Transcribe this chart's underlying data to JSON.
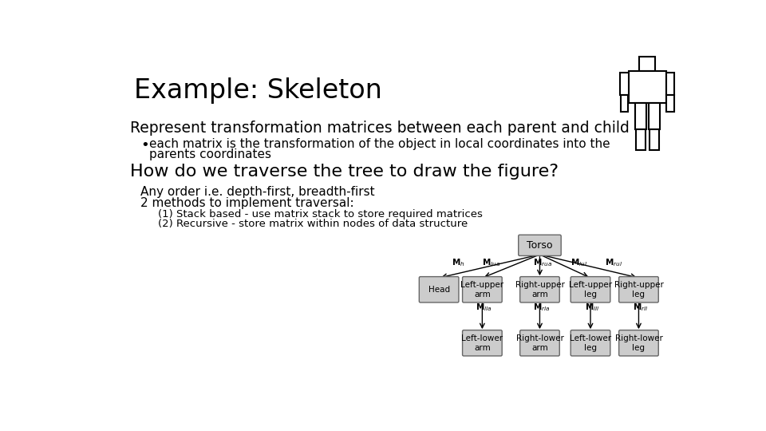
{
  "title": "Example: Skeleton",
  "bg_color": "#ffffff",
  "text_color": "#000000",
  "bullet_line1": "each matrix is the transformation of the object in local coordinates into the",
  "bullet_line2": "parents coordinates",
  "main_text1": "Represent transformation matrices between each parent and child",
  "how_text": "How do we traverse the tree to draw the figure?",
  "any_order": "Any order i.e. depth-first, breadth-first",
  "two_methods": "2 methods to implement traversal:",
  "method1": "(1) Stack based - use matrix stack to store required matrices",
  "method2": "(2) Recursive - store matrix within nodes of data structure",
  "node_bg": "#c8c8c8",
  "node_border": "#666666",
  "torso_label": "Torso",
  "level1_nodes": [
    "Head",
    "Left-upper\narm",
    "Right-upper\narm",
    "Left-upper\nleg",
    "Right-upper\nleg"
  ],
  "level1_math": [
    "$\\mathbf{M}_h$",
    "$\\mathbf{M}_{lua}$",
    "$\\mathbf{M}_{rua}$",
    "$\\mathbf{M}_{lul}$",
    "$\\mathbf{M}_{rul}$"
  ],
  "level2_nodes": [
    "Left-lower\narm",
    "Right-lower\narm",
    "Left-lower\nleg",
    "Right-lower\nleg"
  ],
  "level2_math": [
    "$\\mathbf{M}_{lla}$",
    "$\\mathbf{M}_{rla}$",
    "$\\mathbf{M}_{lll}$",
    "$\\mathbf{M}_{rll}$"
  ]
}
